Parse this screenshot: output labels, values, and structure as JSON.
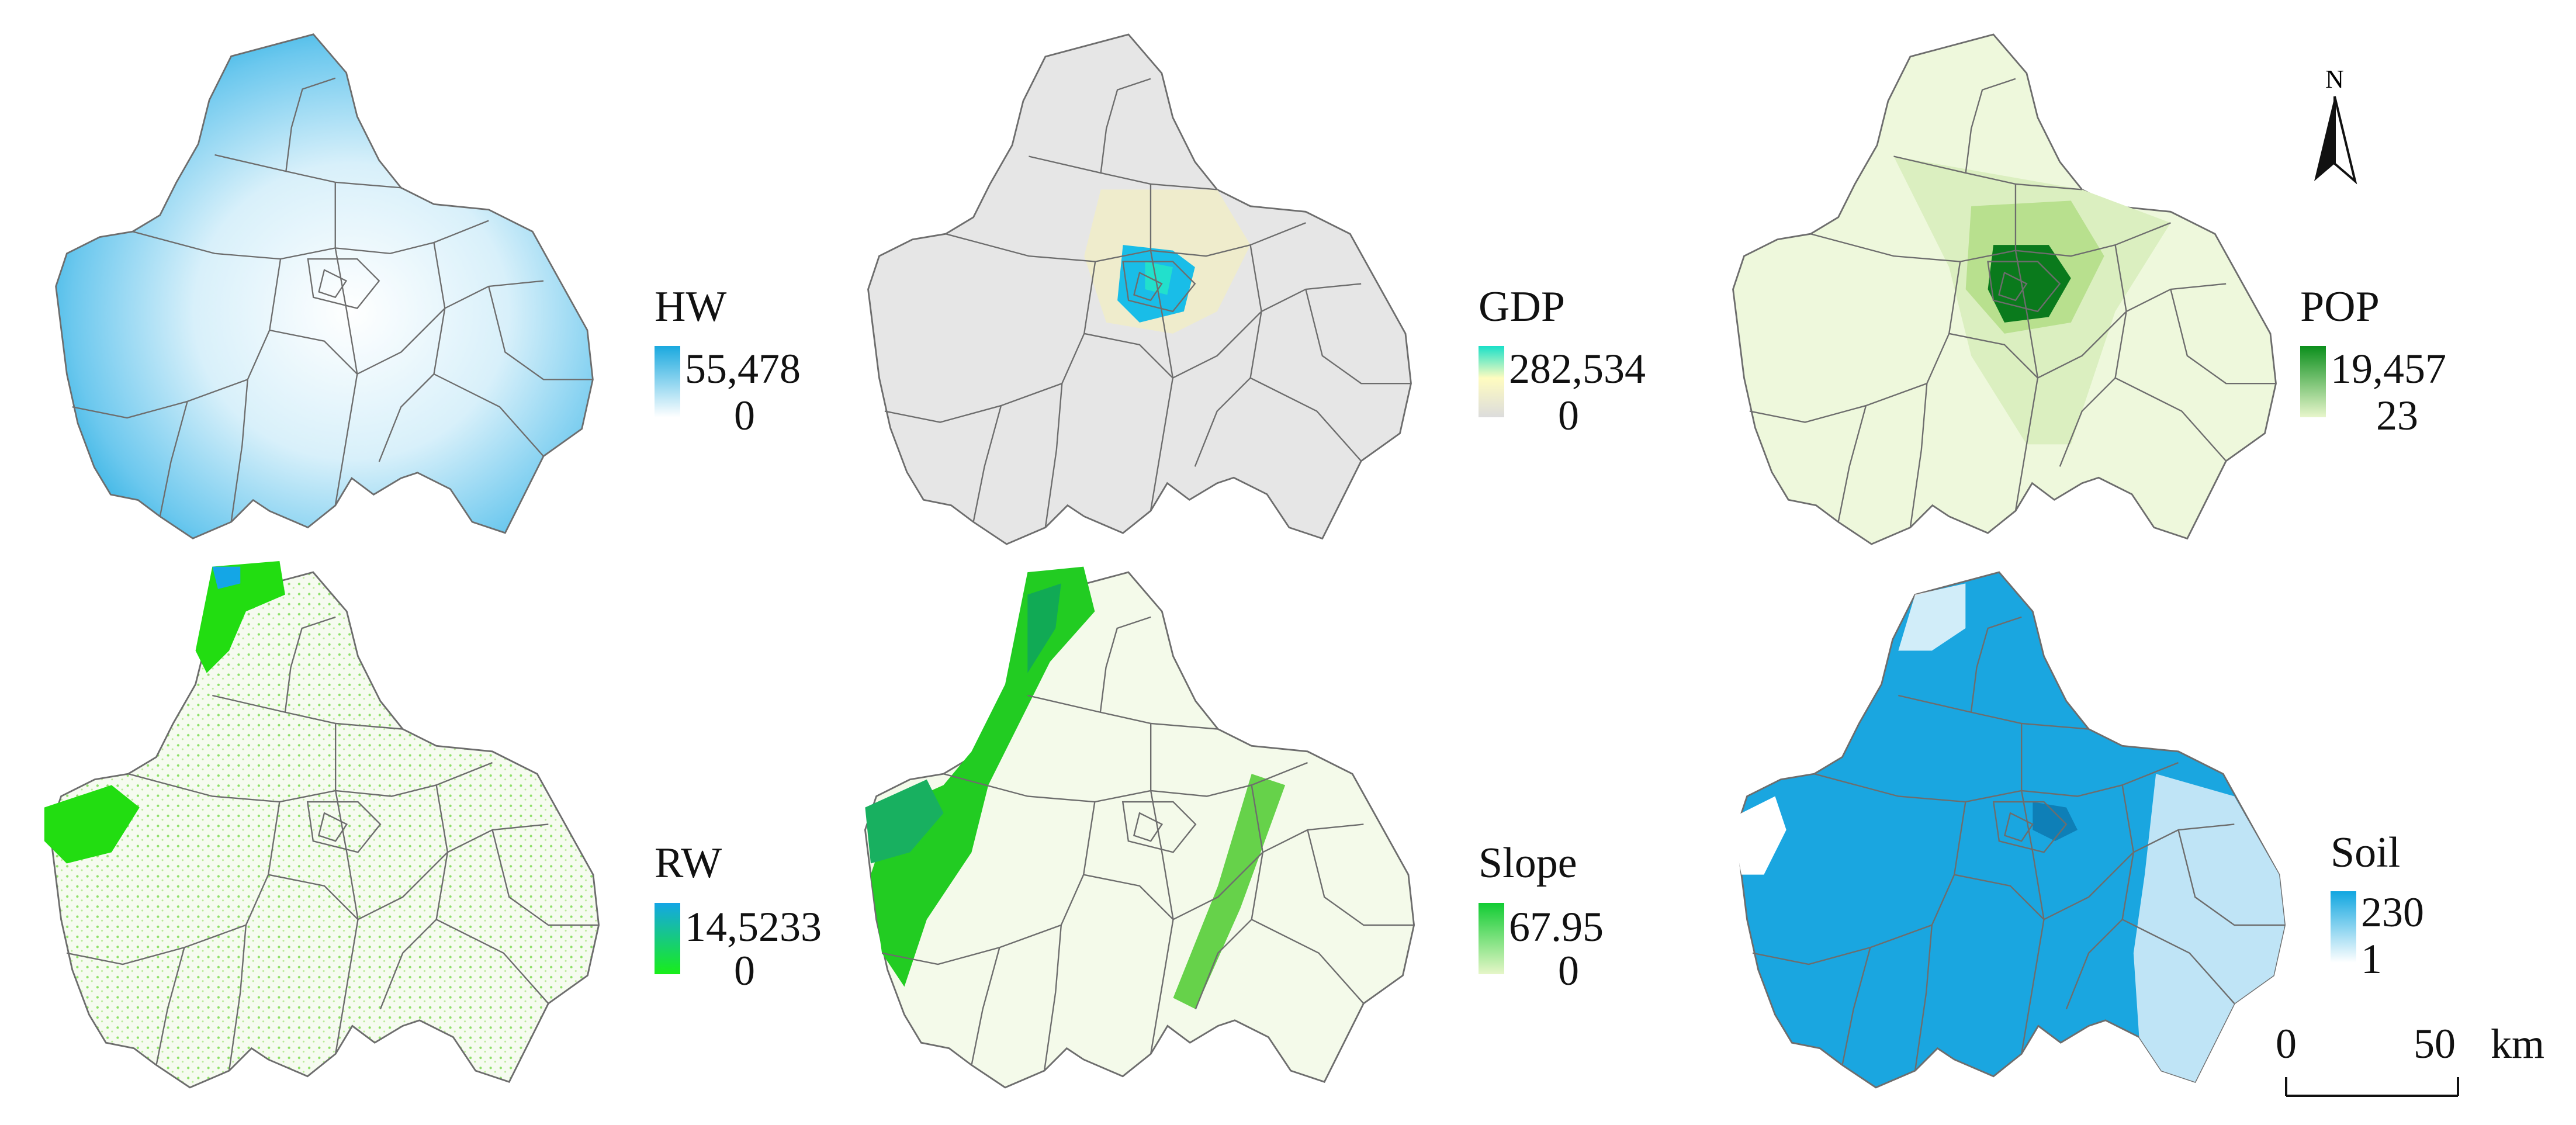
{
  "panels": [
    {
      "id": "hw",
      "title": "HW",
      "max": "55,478",
      "min": "0",
      "ramp": [
        "#1aa9df",
        "#ffffff"
      ]
    },
    {
      "id": "gdp",
      "title": "GDP",
      "max": "282,534",
      "min": "0",
      "ramp": [
        "#19e0c8",
        "#fffcc0",
        "#dcdcdc"
      ]
    },
    {
      "id": "pop",
      "title": "POP",
      "max": "19,457",
      "min": "23",
      "ramp": [
        "#0b8f1c",
        "#e8f6cc"
      ]
    },
    {
      "id": "rw",
      "title": "RW",
      "max": "14,5233",
      "min": "0",
      "ramp": [
        "#14a6e6",
        "#19ee19"
      ]
    },
    {
      "id": "slope",
      "title": "Slope",
      "max": "67.95",
      "min": "0",
      "ramp": [
        "#11cc33",
        "#e6f6c8"
      ]
    },
    {
      "id": "soil",
      "title": "Soil",
      "max": "230",
      "min": "1",
      "ramp": [
        "#10a6e0",
        "#ffffff"
      ]
    }
  ],
  "north_arrow": {
    "label": "N"
  },
  "scale_bar": {
    "start": "0",
    "end": "50",
    "unit": "km"
  },
  "colors": {
    "boundary": "#6d6d6d",
    "hw_fill": "#1ba9df",
    "gdp_fill": "#dedede",
    "gdp_core": "#18bfe9",
    "pop_fill": "#eef8dc",
    "pop_core": "#0a7a1c",
    "rw_fill": "#f4fbee",
    "rw_green": "#22dd11",
    "slope_fill": "#f4faea",
    "slope_green": "#18cc22",
    "soil_fill": "#1aa6e0",
    "soil_light": "#bfe4f6"
  }
}
